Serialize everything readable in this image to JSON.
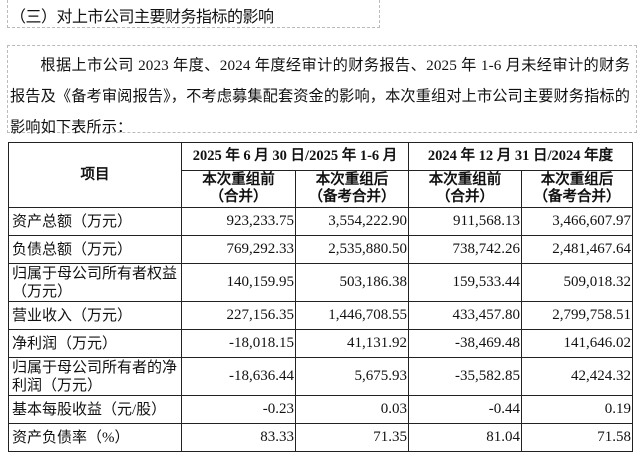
{
  "heading": "（三）对上市公司主要财务指标的影响",
  "paragraph": "根据上市公司 2023 年度、2024 年度经审计的财务报告、2025 年 1-6 月未经审计的财务报告及《备考审阅报告》，不考虑募集配套资金的影响，本次重组对上市公司主要财务指标的影响如下表所示：",
  "table": {
    "item_header": "项目",
    "periods": [
      "2025 年 6 月 30 日/2025 年 1-6 月",
      "2024 年 12 月 31 日/2024 年度"
    ],
    "sub_headers": [
      "本次重组前（合并）",
      "本次重组后（备考合并）",
      "本次重组前（合并）",
      "本次重组后（备考合并）"
    ],
    "rows": [
      {
        "label": "资产总额（万元）",
        "values": [
          "923,233.75",
          "3,554,222.90",
          "911,568.13",
          "3,466,607.97"
        ]
      },
      {
        "label": "负债总额（万元）",
        "values": [
          "769,292.33",
          "2,535,880.50",
          "738,742.26",
          "2,481,467.64"
        ]
      },
      {
        "label": "归属于母公司所有者权益（万元）",
        "values": [
          "140,159.95",
          "503,186.38",
          "159,533.44",
          "509,018.32"
        ]
      },
      {
        "label": "营业收入（万元）",
        "values": [
          "227,156.35",
          "1,446,708.55",
          "433,457.80",
          "2,799,758.51"
        ]
      },
      {
        "label": "净利润（万元）",
        "values": [
          "-18,018.15",
          "41,131.92",
          "-38,469.48",
          "141,646.02"
        ]
      },
      {
        "label": "归属于母公司所有者的净利润（万元）",
        "values": [
          "-18,636.44",
          "5,675.93",
          "-35,582.85",
          "42,424.32"
        ]
      },
      {
        "label": "基本每股收益（元/股）",
        "values": [
          "-0.23",
          "0.03",
          "-0.44",
          "0.19"
        ]
      },
      {
        "label": "资产负债率（%）",
        "values": [
          "83.33",
          "71.35",
          "81.04",
          "71.58"
        ]
      }
    ]
  }
}
